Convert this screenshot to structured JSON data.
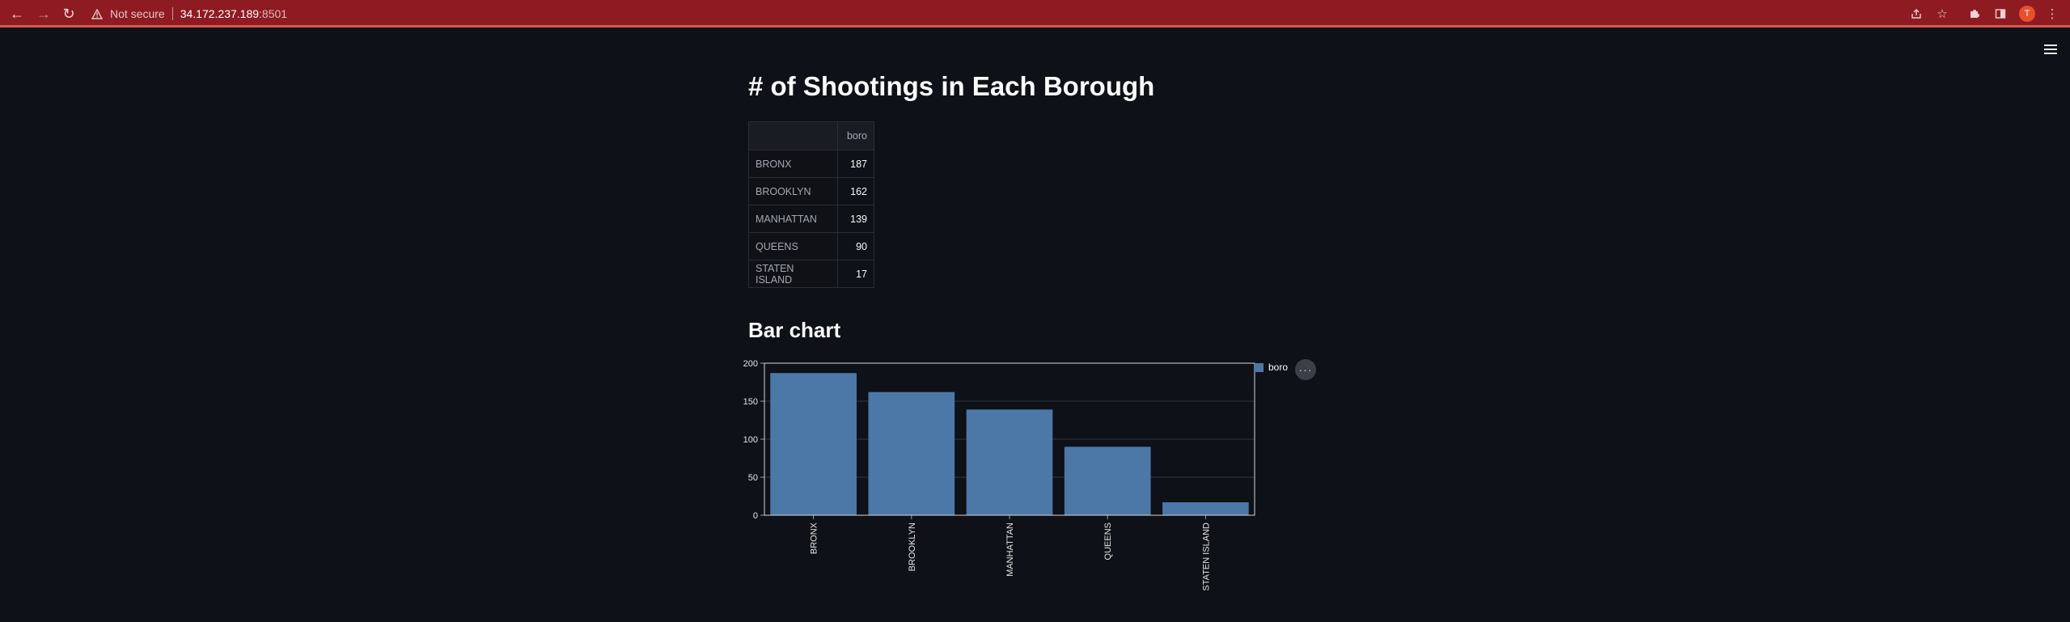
{
  "browser": {
    "security_label": "Not secure",
    "url_host": "34.172.237.189",
    "url_port": ":8501",
    "avatar_letter": "T"
  },
  "app": {
    "title": "# of Shootings in Each Borough",
    "table": {
      "columns": [
        "",
        "boro"
      ],
      "rows": [
        {
          "index": "BRONX",
          "boro": "187"
        },
        {
          "index": "BROOKLYN",
          "boro": "162"
        },
        {
          "index": "MANHATTAN",
          "boro": "139"
        },
        {
          "index": "QUEENS",
          "boro": "90"
        },
        {
          "index": "STATEN ISLAND",
          "boro": "17"
        }
      ]
    },
    "chart_heading": "Bar chart",
    "legend_label": "boro",
    "more_button": "···"
  },
  "chart_data": {
    "type": "bar",
    "categories": [
      "BRONX",
      "BROOKLYN",
      "MANHATTAN",
      "QUEENS",
      "STATEN ISLAND"
    ],
    "series": [
      {
        "name": "boro",
        "values": [
          187,
          162,
          139,
          90,
          17
        ]
      }
    ],
    "title": "",
    "xlabel": "",
    "ylabel": "",
    "ylim": [
      0,
      200
    ],
    "yticks": [
      0,
      50,
      100,
      150,
      200
    ],
    "grid": true,
    "legend": "right",
    "color": "#4c78a8"
  },
  "colors": {
    "background": "#0e1117",
    "browser_bar": "#8e1b22",
    "bar": "#4c78a8"
  }
}
